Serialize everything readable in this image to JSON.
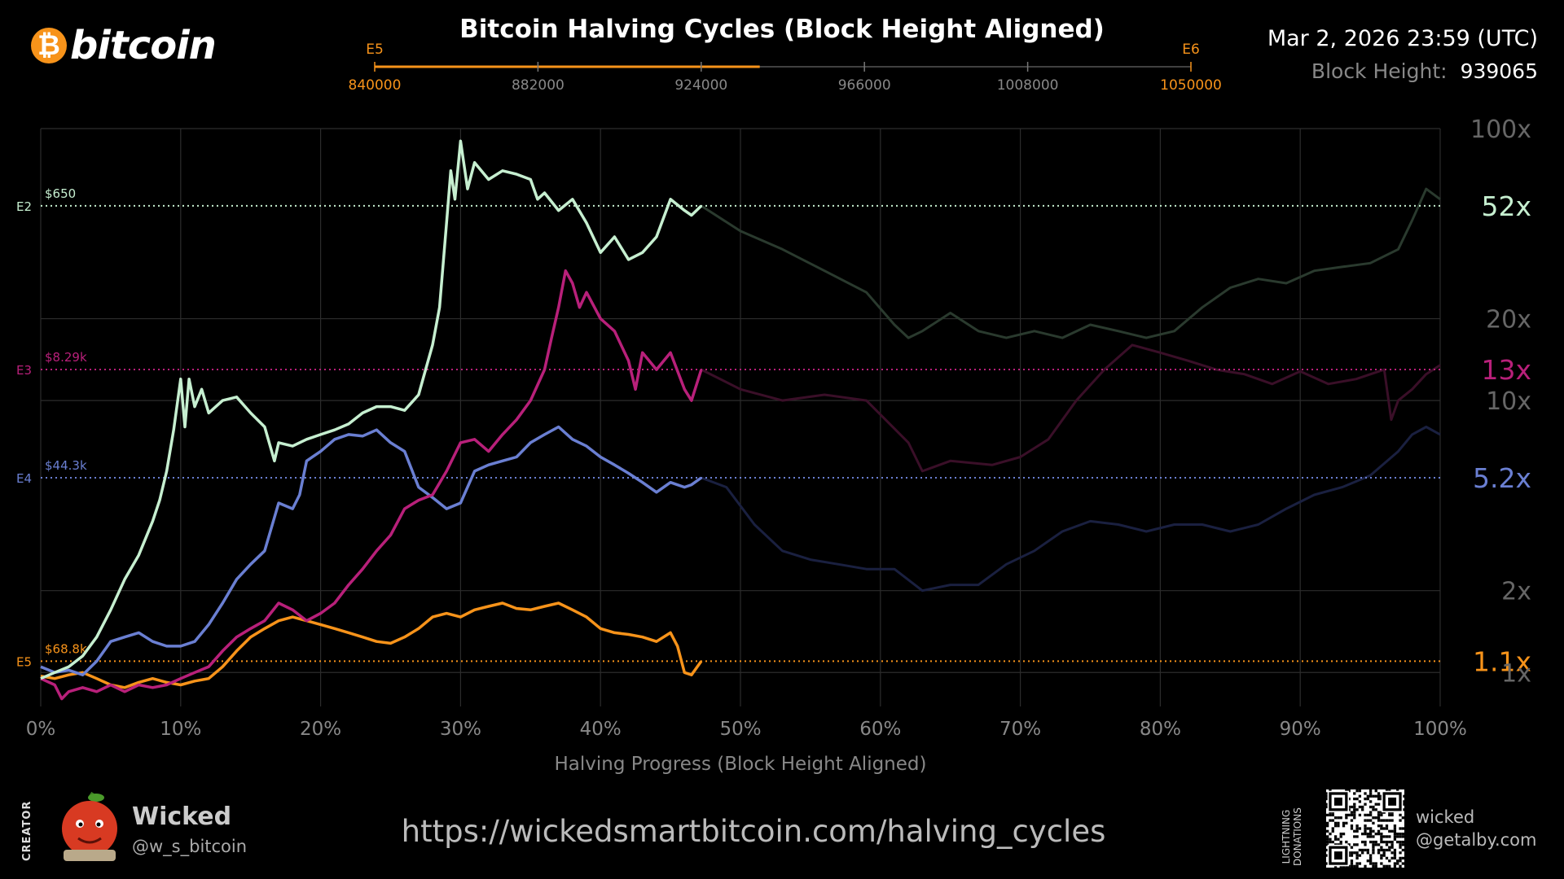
{
  "header": {
    "logo_symbol": "₿",
    "logo_text": "bitcoin",
    "title": "Bitcoin Halving Cycles (Block Height Aligned)",
    "datetime": "Mar 2, 2026 23:59 (UTC)",
    "block_height_label": "Block Height:",
    "block_height_value": "939065"
  },
  "epoch_bar": {
    "start_label": "E5",
    "end_label": "E6",
    "ticks": [
      "840000",
      "882000",
      "924000",
      "966000",
      "1008000",
      "1050000"
    ],
    "start_block": 840000,
    "end_block": 1050000,
    "current_block": 939065,
    "accent_color": "#f7931a"
  },
  "chart_data": {
    "type": "line",
    "title": "",
    "xlabel": "Halving Progress (Block Height Aligned)",
    "ylabel": "",
    "x_ticks": [
      "0%",
      "10%",
      "20%",
      "30%",
      "40%",
      "50%",
      "60%",
      "70%",
      "80%",
      "90%",
      "100%"
    ],
    "xlim": [
      0,
      100
    ],
    "y_scale": "log",
    "ylim": [
      0.75,
      100
    ],
    "y_ticks": [
      {
        "label": "100x",
        "value": 100
      },
      {
        "label": "20x",
        "value": 20
      },
      {
        "label": "10x",
        "value": 10
      },
      {
        "label": "2x",
        "value": 2
      },
      {
        "label": "1x",
        "value": 1
      }
    ],
    "grid": true,
    "current_progress": 47.2,
    "series": [
      {
        "name": "E2",
        "start_price": "$650",
        "current_multiple": 52,
        "current_label": "52x",
        "color": "#c6efd0",
        "points": [
          [
            0,
            0.95
          ],
          [
            1,
            1.0
          ],
          [
            2,
            1.05
          ],
          [
            3,
            1.15
          ],
          [
            4,
            1.35
          ],
          [
            5,
            1.7
          ],
          [
            6,
            2.2
          ],
          [
            7,
            2.7
          ],
          [
            8,
            3.6
          ],
          [
            8.5,
            4.3
          ],
          [
            9,
            5.5
          ],
          [
            9.5,
            7.8
          ],
          [
            10,
            12
          ],
          [
            10.3,
            8
          ],
          [
            10.6,
            12
          ],
          [
            11,
            9.5
          ],
          [
            11.5,
            11
          ],
          [
            12,
            9
          ],
          [
            13,
            10
          ],
          [
            14,
            10.3
          ],
          [
            15,
            9
          ],
          [
            16,
            8
          ],
          [
            16.7,
            6
          ],
          [
            17,
            7
          ],
          [
            18,
            6.8
          ],
          [
            19,
            7.2
          ],
          [
            20,
            7.5
          ],
          [
            21,
            7.8
          ],
          [
            22,
            8.2
          ],
          [
            23,
            9
          ],
          [
            24,
            9.5
          ],
          [
            25,
            9.5
          ],
          [
            26,
            9.2
          ],
          [
            27,
            10.5
          ],
          [
            27.5,
            13
          ],
          [
            28,
            16
          ],
          [
            28.5,
            22
          ],
          [
            29,
            45
          ],
          [
            29.3,
            70
          ],
          [
            29.6,
            55
          ],
          [
            30,
            90
          ],
          [
            30.5,
            60
          ],
          [
            31,
            75
          ],
          [
            32,
            65
          ],
          [
            33,
            70
          ],
          [
            34,
            68
          ],
          [
            35,
            65
          ],
          [
            35.5,
            55
          ],
          [
            36,
            58
          ],
          [
            37,
            50
          ],
          [
            38,
            55
          ],
          [
            39,
            45
          ],
          [
            40,
            35
          ],
          [
            41,
            40
          ],
          [
            42,
            33
          ],
          [
            43,
            35
          ],
          [
            44,
            40
          ],
          [
            45,
            55
          ],
          [
            46,
            50
          ],
          [
            46.5,
            48
          ],
          [
            47.2,
            52
          ]
        ]
      },
      {
        "name": "E3",
        "start_price": "$8.29k",
        "current_multiple": 13,
        "current_label": "13x",
        "color": "#b8207a",
        "points": [
          [
            0,
            0.95
          ],
          [
            1,
            0.9
          ],
          [
            1.5,
            0.8
          ],
          [
            2,
            0.85
          ],
          [
            3,
            0.88
          ],
          [
            4,
            0.85
          ],
          [
            5,
            0.9
          ],
          [
            6,
            0.85
          ],
          [
            7,
            0.9
          ],
          [
            8,
            0.88
          ],
          [
            9,
            0.9
          ],
          [
            10,
            0.95
          ],
          [
            11,
            1.0
          ],
          [
            12,
            1.05
          ],
          [
            13,
            1.2
          ],
          [
            14,
            1.35
          ],
          [
            15,
            1.45
          ],
          [
            16,
            1.55
          ],
          [
            17,
            1.8
          ],
          [
            18,
            1.7
          ],
          [
            19,
            1.55
          ],
          [
            20,
            1.65
          ],
          [
            21,
            1.8
          ],
          [
            22,
            2.1
          ],
          [
            23,
            2.4
          ],
          [
            24,
            2.8
          ],
          [
            25,
            3.2
          ],
          [
            26,
            4.0
          ],
          [
            27,
            4.3
          ],
          [
            28,
            4.5
          ],
          [
            29,
            5.5
          ],
          [
            30,
            7
          ],
          [
            31,
            7.2
          ],
          [
            32,
            6.5
          ],
          [
            33,
            7.5
          ],
          [
            34,
            8.5
          ],
          [
            35,
            10
          ],
          [
            36,
            13
          ],
          [
            36.5,
            17
          ],
          [
            37,
            22
          ],
          [
            37.5,
            30
          ],
          [
            38,
            27
          ],
          [
            38.5,
            22
          ],
          [
            39,
            25
          ],
          [
            40,
            20
          ],
          [
            41,
            18
          ],
          [
            42,
            14
          ],
          [
            42.5,
            11
          ],
          [
            43,
            15
          ],
          [
            44,
            13
          ],
          [
            45,
            15
          ],
          [
            46,
            11
          ],
          [
            46.5,
            10
          ],
          [
            47.2,
            13
          ]
        ]
      },
      {
        "name": "E4",
        "start_price": "$44.3k",
        "current_multiple": 5.2,
        "current_label": "5.2x",
        "color": "#6a7fd2",
        "points": [
          [
            0,
            1.05
          ],
          [
            1,
            1.0
          ],
          [
            2,
            1.02
          ],
          [
            3,
            0.98
          ],
          [
            4,
            1.1
          ],
          [
            5,
            1.3
          ],
          [
            6,
            1.35
          ],
          [
            7,
            1.4
          ],
          [
            8,
            1.3
          ],
          [
            9,
            1.25
          ],
          [
            10,
            1.25
          ],
          [
            11,
            1.3
          ],
          [
            12,
            1.5
          ],
          [
            13,
            1.8
          ],
          [
            14,
            2.2
          ],
          [
            15,
            2.5
          ],
          [
            16,
            2.8
          ],
          [
            17,
            4.2
          ],
          [
            18,
            4.0
          ],
          [
            18.5,
            4.5
          ],
          [
            19,
            6
          ],
          [
            20,
            6.5
          ],
          [
            21,
            7.2
          ],
          [
            22,
            7.5
          ],
          [
            23,
            7.4
          ],
          [
            24,
            7.8
          ],
          [
            25,
            7.0
          ],
          [
            26,
            6.5
          ],
          [
            27,
            4.8
          ],
          [
            28,
            4.4
          ],
          [
            29,
            4.0
          ],
          [
            30,
            4.2
          ],
          [
            31,
            5.5
          ],
          [
            32,
            5.8
          ],
          [
            33,
            6.0
          ],
          [
            34,
            6.2
          ],
          [
            35,
            7.0
          ],
          [
            36,
            7.5
          ],
          [
            37,
            8.0
          ],
          [
            38,
            7.2
          ],
          [
            39,
            6.8
          ],
          [
            40,
            6.2
          ],
          [
            41,
            5.8
          ],
          [
            42,
            5.4
          ],
          [
            43,
            5.0
          ],
          [
            44,
            4.6
          ],
          [
            45,
            5.0
          ],
          [
            46,
            4.8
          ],
          [
            46.5,
            4.9
          ],
          [
            47.2,
            5.2
          ]
        ]
      },
      {
        "name": "E5",
        "start_price": "$68.8k",
        "current_multiple": 1.1,
        "current_label": "1.1x",
        "color": "#f7931a",
        "points": [
          [
            0,
            0.97
          ],
          [
            1,
            0.95
          ],
          [
            2,
            0.98
          ],
          [
            3,
            1.0
          ],
          [
            4,
            0.95
          ],
          [
            5,
            0.9
          ],
          [
            6,
            0.88
          ],
          [
            7,
            0.92
          ],
          [
            8,
            0.95
          ],
          [
            9,
            0.92
          ],
          [
            10,
            0.9
          ],
          [
            11,
            0.93
          ],
          [
            12,
            0.95
          ],
          [
            13,
            1.05
          ],
          [
            14,
            1.2
          ],
          [
            15,
            1.35
          ],
          [
            16,
            1.45
          ],
          [
            17,
            1.55
          ],
          [
            18,
            1.6
          ],
          [
            19,
            1.55
          ],
          [
            20,
            1.5
          ],
          [
            21,
            1.45
          ],
          [
            22,
            1.4
          ],
          [
            23,
            1.35
          ],
          [
            24,
            1.3
          ],
          [
            25,
            1.28
          ],
          [
            26,
            1.35
          ],
          [
            27,
            1.45
          ],
          [
            28,
            1.6
          ],
          [
            29,
            1.65
          ],
          [
            30,
            1.6
          ],
          [
            31,
            1.7
          ],
          [
            32,
            1.75
          ],
          [
            33,
            1.8
          ],
          [
            34,
            1.72
          ],
          [
            35,
            1.7
          ],
          [
            36,
            1.75
          ],
          [
            37,
            1.8
          ],
          [
            38,
            1.7
          ],
          [
            39,
            1.6
          ],
          [
            40,
            1.45
          ],
          [
            41,
            1.4
          ],
          [
            42,
            1.38
          ],
          [
            43,
            1.35
          ],
          [
            44,
            1.3
          ],
          [
            45,
            1.4
          ],
          [
            45.5,
            1.25
          ],
          [
            46,
            1.0
          ],
          [
            46.5,
            0.98
          ],
          [
            47.2,
            1.1
          ]
        ]
      }
    ],
    "historical_continuation": [
      {
        "name": "E2",
        "color": "#2a3a2e",
        "points": [
          [
            47.2,
            52
          ],
          [
            50,
            42
          ],
          [
            53,
            36
          ],
          [
            56,
            30
          ],
          [
            59,
            25
          ],
          [
            61,
            19
          ],
          [
            62,
            17
          ],
          [
            63,
            18
          ],
          [
            65,
            21
          ],
          [
            67,
            18
          ],
          [
            69,
            17
          ],
          [
            71,
            18
          ],
          [
            73,
            17
          ],
          [
            75,
            19
          ],
          [
            77,
            18
          ],
          [
            79,
            17
          ],
          [
            81,
            18
          ],
          [
            83,
            22
          ],
          [
            85,
            26
          ],
          [
            87,
            28
          ],
          [
            89,
            27
          ],
          [
            91,
            30
          ],
          [
            93,
            31
          ],
          [
            95,
            32
          ],
          [
            97,
            36
          ],
          [
            98,
            46
          ],
          [
            99,
            60
          ],
          [
            100,
            55
          ]
        ]
      },
      {
        "name": "E3",
        "color": "#3a0f28",
        "points": [
          [
            47.2,
            13
          ],
          [
            50,
            11
          ],
          [
            53,
            10
          ],
          [
            56,
            10.5
          ],
          [
            59,
            10
          ],
          [
            62,
            7
          ],
          [
            63,
            5.5
          ],
          [
            65,
            6
          ],
          [
            68,
            5.8
          ],
          [
            70,
            6.2
          ],
          [
            72,
            7.2
          ],
          [
            74,
            10
          ],
          [
            76,
            13
          ],
          [
            78,
            16
          ],
          [
            80,
            15
          ],
          [
            82,
            14
          ],
          [
            84,
            13
          ],
          [
            86,
            12.5
          ],
          [
            88,
            11.5
          ],
          [
            90,
            12.8
          ],
          [
            92,
            11.5
          ],
          [
            94,
            12
          ],
          [
            96,
            13
          ],
          [
            96.5,
            8.5
          ],
          [
            97,
            10
          ],
          [
            98,
            11
          ],
          [
            99,
            12.5
          ],
          [
            100,
            13.5
          ]
        ]
      },
      {
        "name": "E4",
        "color": "#1a2040",
        "points": [
          [
            47.2,
            5.2
          ],
          [
            49,
            4.8
          ],
          [
            51,
            3.5
          ],
          [
            53,
            2.8
          ],
          [
            55,
            2.6
          ],
          [
            57,
            2.5
          ],
          [
            59,
            2.4
          ],
          [
            61,
            2.4
          ],
          [
            63,
            2.0
          ],
          [
            65,
            2.1
          ],
          [
            67,
            2.1
          ],
          [
            69,
            2.5
          ],
          [
            71,
            2.8
          ],
          [
            73,
            3.3
          ],
          [
            75,
            3.6
          ],
          [
            77,
            3.5
          ],
          [
            79,
            3.3
          ],
          [
            81,
            3.5
          ],
          [
            83,
            3.5
          ],
          [
            85,
            3.3
          ],
          [
            87,
            3.5
          ],
          [
            89,
            4.0
          ],
          [
            91,
            4.5
          ],
          [
            93,
            4.8
          ],
          [
            95,
            5.3
          ],
          [
            97,
            6.5
          ],
          [
            98,
            7.5
          ],
          [
            99,
            8.0
          ],
          [
            100,
            7.5
          ]
        ]
      }
    ],
    "right_labels": [
      "52x",
      "13x",
      "5.2x",
      "1.1x"
    ]
  },
  "footer": {
    "creator_label": "CREATOR",
    "creator_name": "Wicked",
    "creator_handle": "@w_s_bitcoin",
    "url": "https://wickedsmartbitcoin.com/halving_cycles",
    "donations_label_1": "LIGHTNING",
    "donations_label_2": "DONATIONS",
    "lightning_line_1": "wicked",
    "lightning_line_2": "@getalby.com"
  }
}
